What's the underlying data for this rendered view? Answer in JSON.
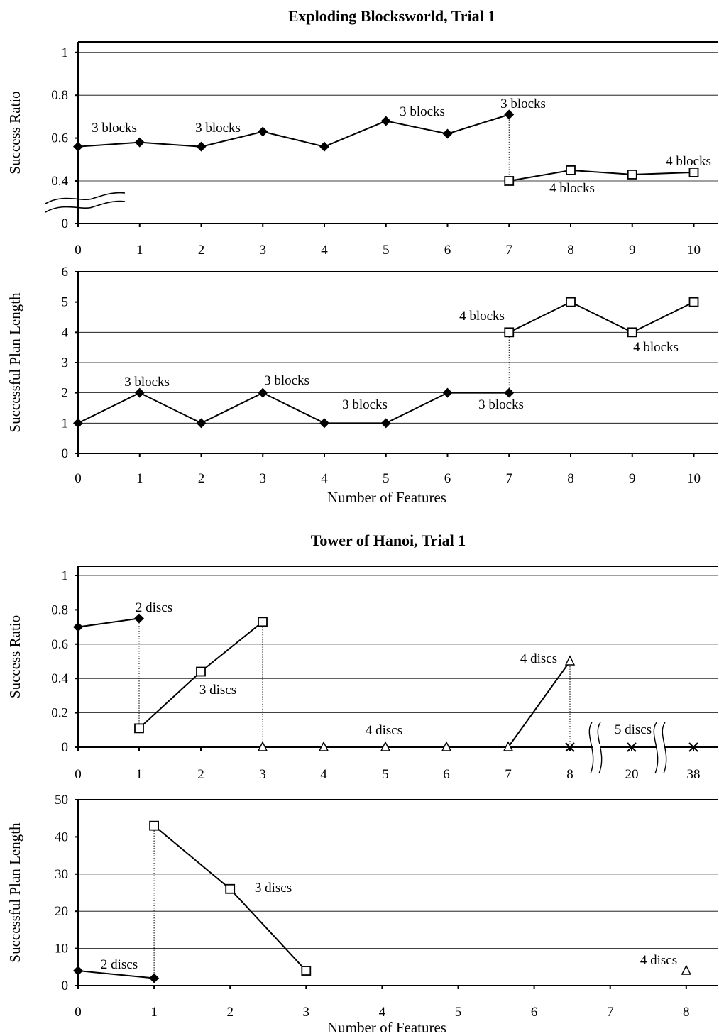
{
  "chart_data": [
    {
      "type": "line",
      "group_title": "Exploding Blocksworld, Trial 1",
      "title": "Exploding Blocksworld, Trial 1",
      "ylabel": "Success Ratio",
      "xlabel": "",
      "ylim": [
        0,
        1
      ],
      "y_break": "between 0 and 0.4",
      "yticks": [
        "0",
        "0.4",
        "0.6",
        "0.8",
        "1"
      ],
      "xticks": [
        "0",
        "1",
        "2",
        "3",
        "4",
        "5",
        "6",
        "7",
        "8",
        "9",
        "10"
      ],
      "series": [
        {
          "name": "3 blocks",
          "marker": "diamond",
          "x": [
            0,
            1,
            2,
            3,
            4,
            5,
            6,
            7
          ],
          "y": [
            0.56,
            0.58,
            0.56,
            0.63,
            0.56,
            0.68,
            0.62,
            0.71
          ]
        },
        {
          "name": "4 blocks",
          "marker": "square",
          "x": [
            7,
            8,
            9,
            10
          ],
          "y": [
            0.4,
            0.45,
            0.43,
            0.44
          ]
        }
      ],
      "annotations": [
        "3 blocks",
        "3 blocks",
        "3 blocks",
        "3 blocks",
        "4 blocks",
        "4 blocks"
      ]
    },
    {
      "type": "line",
      "ylabel": "Successful Plan Length",
      "xlabel": "Number of Features",
      "ylim": [
        0,
        6
      ],
      "yticks": [
        "0",
        "1",
        "2",
        "3",
        "4",
        "5",
        "6"
      ],
      "xticks": [
        "0",
        "1",
        "2",
        "3",
        "4",
        "5",
        "6",
        "7",
        "8",
        "9",
        "10"
      ],
      "series": [
        {
          "name": "3 blocks",
          "marker": "diamond",
          "x": [
            0,
            1,
            2,
            3,
            4,
            5,
            6,
            7
          ],
          "y": [
            1,
            2,
            1,
            2,
            1,
            1,
            2,
            2
          ]
        },
        {
          "name": "4 blocks",
          "marker": "square",
          "x": [
            7,
            8,
            9,
            10
          ],
          "y": [
            4,
            5,
            4,
            5
          ]
        }
      ],
      "annotations": [
        "3 blocks",
        "3 blocks",
        "3 blocks",
        "3 blocks",
        "4 blocks",
        "4 blocks"
      ]
    },
    {
      "type": "line",
      "group_title": "Tower of Hanoi, Trial 1",
      "title": "Tower of Hanoi, Trial 1",
      "ylabel": "Success Ratio",
      "xlabel": "",
      "ylim": [
        0,
        1
      ],
      "x_break": "between 8 and 20, and between 20 and 38",
      "yticks": [
        "0",
        "0.2",
        "0.4",
        "0.6",
        "0.8",
        "1"
      ],
      "xticks": [
        "0",
        "1",
        "2",
        "3",
        "4",
        "5",
        "6",
        "7",
        "8",
        "20",
        "38"
      ],
      "series": [
        {
          "name": "2 discs",
          "marker": "diamond",
          "x": [
            0,
            1
          ],
          "y": [
            0.7,
            0.75
          ]
        },
        {
          "name": "3 discs",
          "marker": "square",
          "x": [
            1,
            2,
            3
          ],
          "y": [
            0.11,
            0.44,
            0.73
          ]
        },
        {
          "name": "4 discs",
          "marker": "triangle",
          "x": [
            3,
            4,
            5,
            6,
            7,
            8
          ],
          "y": [
            0,
            0,
            0,
            0,
            0,
            0.5
          ]
        },
        {
          "name": "5 discs",
          "marker": "x",
          "x": [
            8,
            20,
            38
          ],
          "y": [
            0,
            0,
            0
          ]
        }
      ],
      "annotations": [
        "2 discs",
        "3 discs",
        "4 discs",
        "4 discs",
        "5 discs"
      ]
    },
    {
      "type": "line",
      "ylabel": "Successful Plan Length",
      "xlabel": "Number of Features",
      "ylim": [
        0,
        50
      ],
      "yticks": [
        "0",
        "10",
        "20",
        "30",
        "40",
        "50"
      ],
      "xticks": [
        "0",
        "1",
        "2",
        "3",
        "4",
        "5",
        "6",
        "7",
        "8"
      ],
      "series": [
        {
          "name": "2 discs",
          "marker": "diamond",
          "x": [
            0,
            1
          ],
          "y": [
            4,
            2
          ]
        },
        {
          "name": "3 discs",
          "marker": "square",
          "x": [
            1,
            2,
            3
          ],
          "y": [
            43,
            26,
            4
          ]
        },
        {
          "name": "4 discs",
          "marker": "triangle",
          "x": [
            8
          ],
          "y": [
            4
          ]
        }
      ],
      "annotations": [
        "2 discs",
        "3 discs",
        "4 discs"
      ]
    }
  ]
}
